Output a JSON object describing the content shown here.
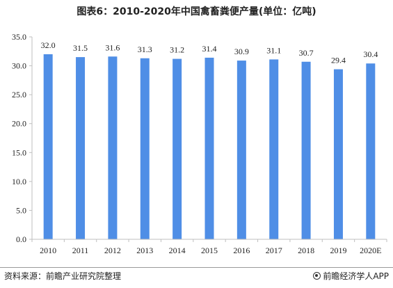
{
  "title": "图表6：2010-2020年中国禽畜粪便产量(单位：亿吨)",
  "footer": {
    "source": "资料来源：前瞻产业研究院整理",
    "brand": "前瞻经济学人APP"
  },
  "colors": {
    "bar": "#4f8ee6",
    "axis": "#bfbfbf",
    "text": "#222222"
  },
  "chart_data": {
    "type": "bar",
    "categories": [
      "2010",
      "2011",
      "2012",
      "2013",
      "2014",
      "2015",
      "2016",
      "2017",
      "2018",
      "2019",
      "2020E"
    ],
    "values": [
      32.0,
      31.5,
      31.6,
      31.3,
      31.2,
      31.4,
      30.9,
      31.1,
      30.7,
      29.4,
      30.4
    ],
    "value_labels": [
      "32.0",
      "31.5",
      "31.6",
      "31.3",
      "31.2",
      "31.4",
      "30.9",
      "31.1",
      "30.7",
      "29.4",
      "30.4"
    ],
    "ylim": [
      0,
      35
    ],
    "yticks": [
      "0.0",
      "5.0",
      "10.0",
      "15.0",
      "20.0",
      "25.0",
      "30.0",
      "35.0"
    ],
    "ytick_values": [
      0,
      5,
      10,
      15,
      20,
      25,
      30,
      35
    ],
    "grid": false,
    "legend": "none"
  }
}
